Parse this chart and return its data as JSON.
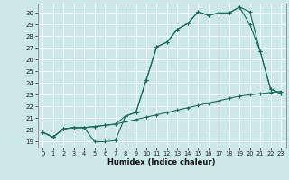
{
  "xlabel": "Humidex (Indice chaleur)",
  "bg_color": "#cce8e8",
  "grid_color": "#b0d4d4",
  "line_color": "#1a6b5a",
  "xlim": [
    -0.5,
    23.5
  ],
  "ylim": [
    18.5,
    30.8
  ],
  "yticks": [
    19,
    20,
    21,
    22,
    23,
    24,
    25,
    26,
    27,
    28,
    29,
    30
  ],
  "xticks": [
    0,
    1,
    2,
    3,
    4,
    5,
    6,
    7,
    8,
    9,
    10,
    11,
    12,
    13,
    14,
    15,
    16,
    17,
    18,
    19,
    20,
    21,
    22,
    23
  ],
  "line1_x": [
    0,
    1,
    2,
    3,
    4,
    5,
    6,
    7,
    8,
    9,
    10,
    11,
    12,
    13,
    14,
    15,
    16,
    17,
    18,
    19,
    20,
    21,
    22,
    23
  ],
  "line1_y": [
    19.8,
    19.4,
    20.1,
    20.2,
    20.2,
    19.0,
    19.0,
    19.1,
    21.2,
    21.5,
    24.3,
    27.1,
    27.5,
    28.6,
    29.1,
    30.1,
    29.8,
    30.0,
    30.0,
    30.5,
    30.1,
    26.7,
    23.5,
    23.1
  ],
  "line2_x": [
    0,
    1,
    2,
    3,
    4,
    5,
    6,
    7,
    8,
    9,
    10,
    11,
    12,
    13,
    14,
    15,
    16,
    17,
    18,
    19,
    20,
    21,
    22,
    23
  ],
  "line2_y": [
    19.8,
    19.4,
    20.1,
    20.2,
    20.2,
    20.3,
    20.4,
    20.5,
    20.7,
    20.9,
    21.1,
    21.3,
    21.5,
    21.7,
    21.9,
    22.1,
    22.3,
    22.5,
    22.7,
    22.9,
    23.0,
    23.1,
    23.2,
    23.3
  ],
  "line3_x": [
    0,
    1,
    2,
    3,
    4,
    5,
    6,
    7,
    8,
    9,
    10,
    11,
    12,
    13,
    14,
    15,
    16,
    17,
    18,
    19,
    20,
    21,
    22,
    23
  ],
  "line3_y": [
    19.8,
    19.4,
    20.1,
    20.2,
    20.2,
    20.3,
    20.4,
    20.5,
    21.2,
    21.5,
    24.3,
    27.1,
    27.5,
    28.6,
    29.1,
    30.1,
    29.8,
    30.0,
    30.0,
    30.5,
    29.0,
    26.7,
    23.5,
    23.1
  ]
}
